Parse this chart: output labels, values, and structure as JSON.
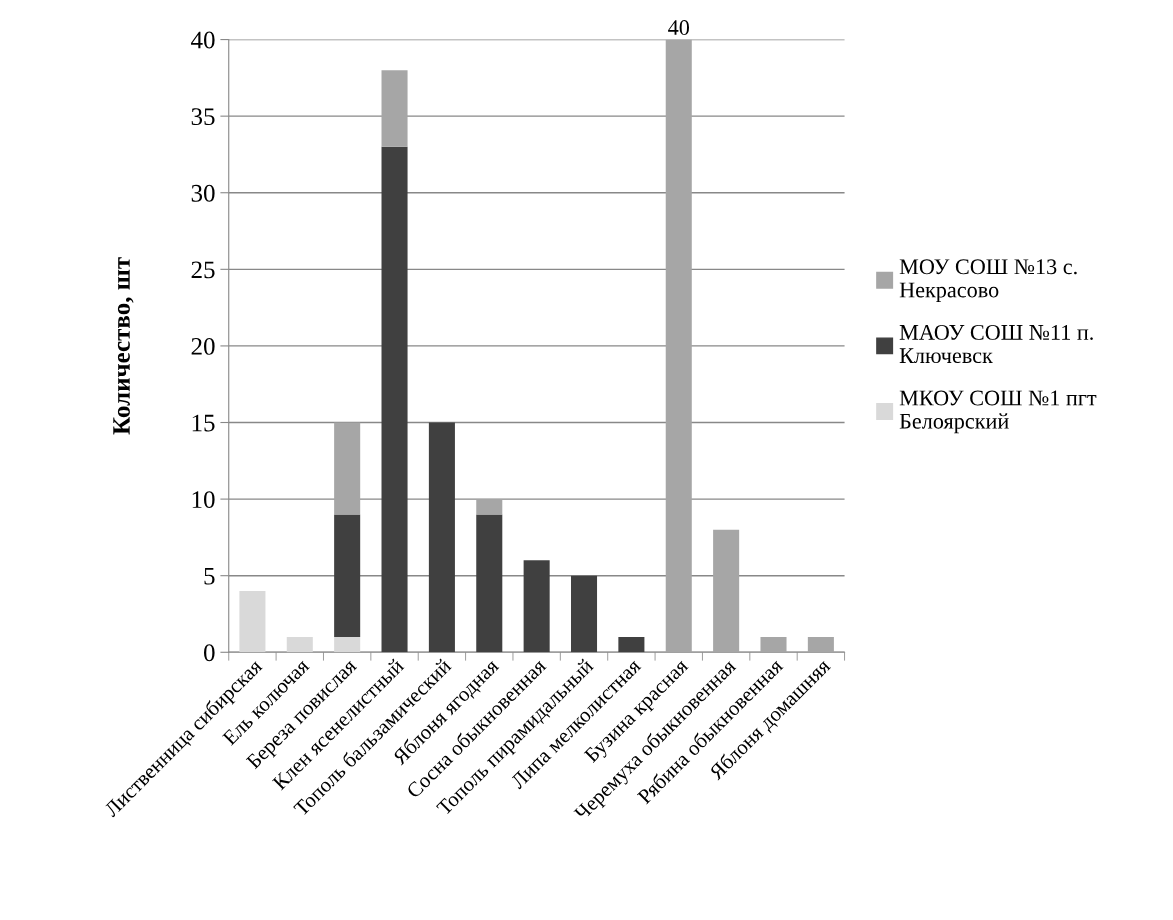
{
  "chart_data": {
    "type": "bar",
    "stacked": true,
    "ylabel": "Количество, шт",
    "categories": [
      "Лиственница сибирская",
      "Ель колючая",
      "Береза повислая",
      "Клен ясенелистный",
      "Тополь бальзамический",
      "Яблоня ягодная",
      "Сосна обыкновенная",
      "Тополь пирамидальный",
      "Липа мелколистная",
      "Бузина красная",
      "Черемуха обыкновенная",
      "Рябина обыкновенная",
      "Яблоня домашняя"
    ],
    "series": [
      {
        "name": "МКОУ СОШ №1 пгт Белоярский",
        "color": "#d9d9d9",
        "values": [
          4,
          1,
          1,
          0,
          0,
          0,
          0,
          0,
          0,
          0,
          0,
          0,
          0
        ]
      },
      {
        "name": "МАОУ СОШ №11 п. Ключевск",
        "color": "#404040",
        "values": [
          0,
          0,
          8,
          33,
          15,
          9,
          6,
          5,
          1,
          0,
          0,
          0,
          0
        ]
      },
      {
        "name": "МОУ СОШ №13 с. Некрасово",
        "color": "#a6a6a6",
        "values": [
          0,
          0,
          6,
          5,
          0,
          1,
          0,
          0,
          0,
          40,
          8,
          1,
          1
        ],
        "value_labels": [
          null,
          null,
          null,
          null,
          null,
          null,
          null,
          null,
          null,
          "40",
          null,
          null,
          null
        ]
      }
    ],
    "ylim": [
      0,
      40
    ],
    "yticks": [
      0,
      5,
      10,
      15,
      20,
      25,
      30,
      35,
      40
    ],
    "grid": "y",
    "legend": "right"
  }
}
